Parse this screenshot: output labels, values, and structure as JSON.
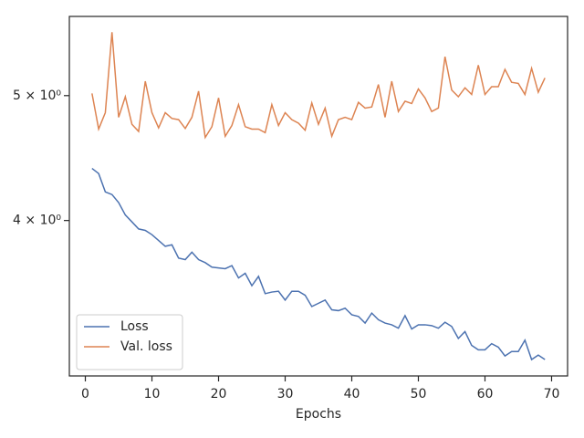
{
  "chart_data": {
    "type": "line",
    "xlabel": "Epochs",
    "x": [
      1,
      2,
      3,
      4,
      5,
      6,
      7,
      8,
      9,
      10,
      11,
      12,
      13,
      14,
      15,
      16,
      17,
      18,
      19,
      20,
      21,
      22,
      23,
      24,
      25,
      26,
      27,
      28,
      29,
      30,
      31,
      32,
      33,
      34,
      35,
      36,
      37,
      38,
      39,
      40,
      41,
      42,
      43,
      44,
      45,
      46,
      47,
      48,
      49,
      50,
      51,
      52,
      53,
      54,
      55,
      56,
      57,
      58,
      59,
      60,
      61,
      62,
      63,
      64,
      65,
      66,
      67,
      68,
      69
    ],
    "series": [
      {
        "name": "Loss",
        "color": "#4c72b0",
        "values": [
          4.39,
          4.35,
          4.21,
          4.19,
          4.13,
          4.04,
          3.99,
          3.94,
          3.93,
          3.9,
          3.86,
          3.82,
          3.83,
          3.74,
          3.73,
          3.78,
          3.73,
          3.71,
          3.68,
          3.675,
          3.67,
          3.69,
          3.61,
          3.64,
          3.56,
          3.62,
          3.51,
          3.52,
          3.525,
          3.47,
          3.525,
          3.525,
          3.5,
          3.43,
          3.45,
          3.47,
          3.41,
          3.405,
          3.42,
          3.38,
          3.37,
          3.33,
          3.39,
          3.35,
          3.33,
          3.32,
          3.3,
          3.375,
          3.295,
          3.32,
          3.32,
          3.315,
          3.3,
          3.335,
          3.31,
          3.24,
          3.28,
          3.2,
          3.175,
          3.175,
          3.21,
          3.19,
          3.14,
          3.165,
          3.165,
          3.23,
          3.12,
          3.145,
          3.12
        ]
      },
      {
        "name": "Val. loss",
        "color": "#dd8452",
        "values": [
          5.02,
          4.71,
          4.85,
          5.6,
          4.81,
          4.99,
          4.75,
          4.69,
          5.13,
          4.85,
          4.72,
          4.85,
          4.8,
          4.79,
          4.715,
          4.81,
          5.04,
          4.64,
          4.73,
          4.98,
          4.65,
          4.74,
          4.92,
          4.73,
          4.71,
          4.71,
          4.68,
          4.92,
          4.74,
          4.85,
          4.79,
          4.76,
          4.7,
          4.935,
          4.75,
          4.89,
          4.65,
          4.79,
          4.81,
          4.79,
          4.94,
          4.89,
          4.9,
          5.1,
          4.81,
          5.13,
          4.86,
          4.95,
          4.93,
          5.06,
          4.98,
          4.86,
          4.89,
          5.36,
          5.05,
          4.99,
          5.07,
          5.01,
          5.28,
          5.01,
          5.08,
          5.08,
          5.24,
          5.12,
          5.11,
          5.01,
          5.25,
          5.03,
          5.16
        ]
      }
    ],
    "xlim": [
      -2.4,
      72.4
    ],
    "xticks": [
      0,
      10,
      20,
      30,
      40,
      50,
      60,
      70
    ],
    "ylim": [
      3.03,
      5.76
    ],
    "ylog": true,
    "yticks": [
      {
        "value": 4,
        "label": "4 × 10⁰"
      },
      {
        "value": 5,
        "label": "5 × 10⁰"
      }
    ],
    "legend": "lower left"
  }
}
